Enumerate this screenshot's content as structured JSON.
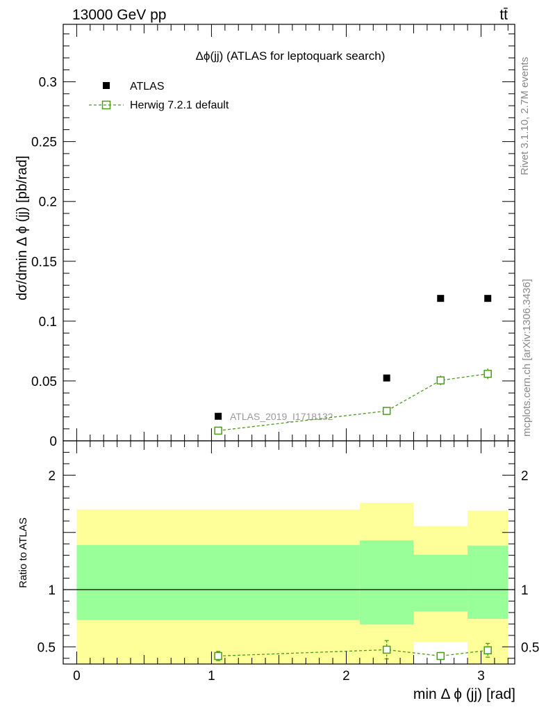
{
  "header": {
    "energy_label": "13000 GeV pp",
    "process_label": "tt̄"
  },
  "side_labels": {
    "rivet": "Rivet 3.1.10,  2.7M events",
    "mcplots": "mcplots.cern.ch [arXiv:1306.3436]"
  },
  "colors": {
    "herwig": "#4a9a1a",
    "band_inner": "#99ff99",
    "band_outer": "#ffff99",
    "data": "#000000"
  },
  "chart_data": [
    {
      "type": "scatter",
      "title": "Δϕ(jj) (ATLAS for leptoquark search)",
      "watermark": "ATLAS_2019_I1718132",
      "ylabel": "dσ/dmin Δ ϕ (jj) [pb/rad]",
      "xlim": [
        -0.1,
        3.25
      ],
      "ylim": [
        0,
        0.348
      ],
      "y_ticks": [
        0,
        0.05,
        0.1,
        0.15,
        0.2,
        0.25,
        0.3
      ],
      "y_tick_labels": [
        "0",
        "0.05",
        "0.1",
        "0.15",
        "0.2",
        "0.25",
        "0.3"
      ],
      "legend": [
        {
          "key": "atlas",
          "label": "ATLAS"
        },
        {
          "key": "herwig",
          "label": "Herwig 7.2.1 default"
        }
      ],
      "series": [
        {
          "name": "ATLAS",
          "x": [
            1.05,
            2.3,
            2.7,
            3.05
          ],
          "y": [
            0.0205,
            0.0525,
            0.119,
            0.119
          ]
        },
        {
          "name": "Herwig 7.2.1 default",
          "x": [
            1.05,
            2.3,
            2.7,
            3.05
          ],
          "y": [
            0.0085,
            0.025,
            0.0505,
            0.056
          ],
          "yerr": [
            0.0008,
            0.002,
            0.004,
            0.0045
          ]
        }
      ]
    },
    {
      "type": "scatter",
      "ylabel": "Ratio to ATLAS",
      "xlabel": "min Δ ϕ (jj) [rad]",
      "xlim": [
        -0.1,
        3.25
      ],
      "ylim": [
        0.35,
        2.3
      ],
      "x_ticks": [
        0,
        1,
        2,
        3
      ],
      "x_tick_labels": [
        "0",
        "1",
        "2",
        "3"
      ],
      "y_ticks": [
        0.5,
        1,
        2
      ],
      "y_tick_labels": [
        "0.5",
        "1",
        "2"
      ],
      "bins": [
        [
          0,
          2.1
        ],
        [
          2.1,
          2.5
        ],
        [
          2.5,
          2.9
        ],
        [
          2.9,
          3.2
        ]
      ],
      "band_inner": [
        [
          0.735,
          1.39
        ],
        [
          0.695,
          1.43
        ],
        [
          0.81,
          1.305
        ],
        [
          0.745,
          1.385
        ]
      ],
      "band_outer": [
        [
          0.35,
          1.7
        ],
        [
          0.35,
          1.76
        ],
        [
          0.545,
          1.555
        ],
        [
          0.35,
          1.69
        ]
      ],
      "series": [
        {
          "name": "Herwig 7.2.1 default",
          "x": [
            1.05,
            2.3,
            2.7,
            3.05
          ],
          "y": [
            0.42,
            0.475,
            0.42,
            0.47
          ],
          "yerr": [
            0.04,
            0.08,
            0.03,
            0.06
          ]
        }
      ]
    }
  ]
}
